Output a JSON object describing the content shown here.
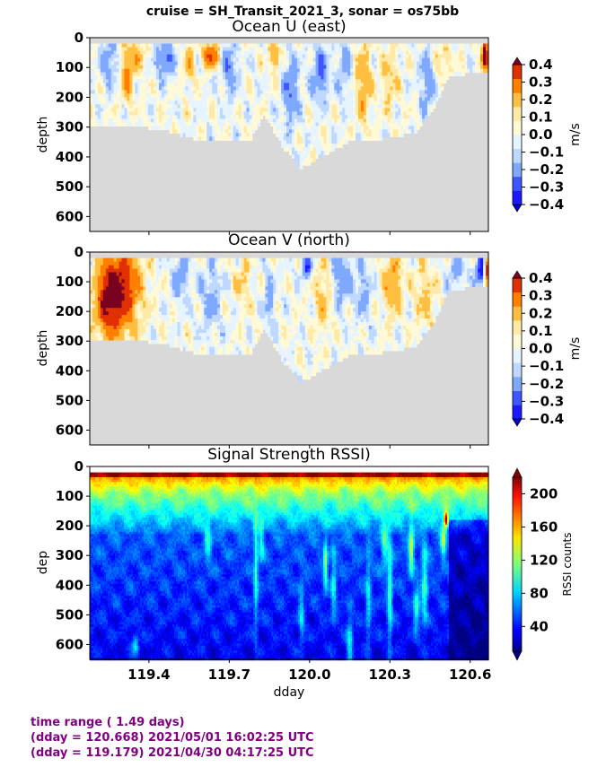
{
  "suptitle": "cruise = SH_Transit_2021_3,  sonar = os75bb",
  "footer": {
    "line1": "time range ( 1.49 days)",
    "line2": "(dday = 120.668) 2021/05/01 16:02:25 UTC",
    "line3": "(dday = 119.179) 2021/04/30 04:17:25 UTC"
  },
  "chart_data": [
    {
      "type": "heatmap",
      "title": "Ocean U (east)",
      "ylabel": "depth",
      "xlabel": "",
      "xlim": [
        119.179,
        120.668
      ],
      "ylim": [
        650,
        0
      ],
      "yticks": [
        0,
        100,
        200,
        300,
        400,
        500,
        600
      ],
      "xticks": [
        119.4,
        119.7,
        120.0,
        120.3,
        120.6
      ],
      "show_xticklabels": false,
      "colorbar": {
        "label": "m/s",
        "ticks": [
          "0.4",
          "0.3",
          "0.2",
          "0.1",
          "0.0",
          "−0.1",
          "−0.2",
          "−0.3",
          "−0.4"
        ],
        "levels": [
          -0.4,
          -0.3,
          -0.2,
          -0.1,
          -0.05,
          0.0,
          0.05,
          0.1,
          0.2,
          0.3,
          0.4
        ],
        "colors": [
          "#1a1aff",
          "#3f55ff",
          "#7fa8ff",
          "#bfd8ff",
          "#e6f4ff",
          "#fff9d6",
          "#ffe9a6",
          "#ffbf40",
          "#ff7f00",
          "#e03000"
        ],
        "under": "#0000d0",
        "over": "#7a0020"
      },
      "bottom_depth": [
        [
          119.179,
          290
        ],
        [
          119.33,
          290
        ],
        [
          119.45,
          300
        ],
        [
          119.55,
          330
        ],
        [
          119.65,
          340
        ],
        [
          119.78,
          335
        ],
        [
          119.83,
          250
        ],
        [
          119.9,
          360
        ],
        [
          119.97,
          430
        ],
        [
          120.05,
          390
        ],
        [
          120.15,
          340
        ],
        [
          120.3,
          330
        ],
        [
          120.4,
          310
        ],
        [
          120.47,
          220
        ],
        [
          120.52,
          120
        ],
        [
          120.668,
          110
        ]
      ],
      "features": [
        {
          "x": 119.32,
          "z": 120,
          "v": 0.24,
          "wx": 0.022,
          "wz": 90
        },
        {
          "x": 119.36,
          "z": 60,
          "v": 0.14,
          "wx": 0.03,
          "wz": 50
        },
        {
          "x": 119.25,
          "z": 80,
          "v": -0.16,
          "wx": 0.03,
          "wz": 80
        },
        {
          "x": 119.46,
          "z": 70,
          "v": -0.22,
          "wx": 0.035,
          "wz": 60
        },
        {
          "x": 119.55,
          "z": 90,
          "v": 0.18,
          "wx": 0.02,
          "wz": 60
        },
        {
          "x": 119.63,
          "z": 60,
          "v": 0.32,
          "wx": 0.03,
          "wz": 40
        },
        {
          "x": 119.7,
          "z": 100,
          "v": -0.18,
          "wx": 0.03,
          "wz": 90
        },
        {
          "x": 119.87,
          "z": 60,
          "v": 0.22,
          "wx": 0.02,
          "wz": 50
        },
        {
          "x": 119.93,
          "z": 180,
          "v": -0.2,
          "wx": 0.03,
          "wz": 120
        },
        {
          "x": 120.04,
          "z": 120,
          "v": -0.22,
          "wx": 0.03,
          "wz": 90
        },
        {
          "x": 120.13,
          "z": 100,
          "v": -0.12,
          "wx": 0.03,
          "wz": 110
        },
        {
          "x": 120.2,
          "z": 150,
          "v": 0.18,
          "wx": 0.03,
          "wz": 130
        },
        {
          "x": 120.3,
          "z": 130,
          "v": 0.12,
          "wx": 0.03,
          "wz": 110
        },
        {
          "x": 120.44,
          "z": 150,
          "v": -0.18,
          "wx": 0.025,
          "wz": 100
        },
        {
          "x": 120.5,
          "z": 70,
          "v": 0.1,
          "wx": 0.03,
          "wz": 60
        },
        {
          "x": 120.655,
          "z": 60,
          "v": 0.55,
          "wx": 0.012,
          "wz": 50
        }
      ]
    },
    {
      "type": "heatmap",
      "title": "Ocean V (north)",
      "ylabel": "depth",
      "xlabel": "",
      "xlim": [
        119.179,
        120.668
      ],
      "ylim": [
        650,
        0
      ],
      "yticks": [
        0,
        100,
        200,
        300,
        400,
        500,
        600
      ],
      "xticks": [
        119.4,
        119.7,
        120.0,
        120.3,
        120.6
      ],
      "show_xticklabels": false,
      "colorbar": {
        "label": "m/s",
        "ticks": [
          "0.4",
          "0.3",
          "0.2",
          "0.1",
          "0.0",
          "−0.1",
          "−0.2",
          "−0.3",
          "−0.4"
        ],
        "levels": [
          -0.4,
          -0.3,
          -0.2,
          -0.1,
          -0.05,
          0.0,
          0.05,
          0.1,
          0.2,
          0.3,
          0.4
        ],
        "colors": [
          "#1a1aff",
          "#3f55ff",
          "#7fa8ff",
          "#bfd8ff",
          "#e6f4ff",
          "#fff9d6",
          "#ffe9a6",
          "#ffbf40",
          "#ff7f00",
          "#e03000"
        ],
        "under": "#0000d0",
        "over": "#7a0020"
      },
      "bottom_depth": [
        [
          119.179,
          290
        ],
        [
          119.33,
          290
        ],
        [
          119.45,
          300
        ],
        [
          119.55,
          330
        ],
        [
          119.65,
          340
        ],
        [
          119.78,
          335
        ],
        [
          119.83,
          250
        ],
        [
          119.9,
          360
        ],
        [
          119.97,
          430
        ],
        [
          120.05,
          390
        ],
        [
          120.15,
          340
        ],
        [
          120.3,
          330
        ],
        [
          120.4,
          310
        ],
        [
          120.47,
          220
        ],
        [
          120.52,
          120
        ],
        [
          120.668,
          110
        ]
      ],
      "features": [
        {
          "x": 119.3,
          "z": 90,
          "v": 0.32,
          "wx": 0.07,
          "wz": 120
        },
        {
          "x": 119.28,
          "z": 200,
          "v": 0.2,
          "wx": 0.07,
          "wz": 120
        },
        {
          "x": 119.24,
          "z": 150,
          "v": 0.22,
          "wx": 0.04,
          "wz": 120
        },
        {
          "x": 119.52,
          "z": 80,
          "v": -0.16,
          "wx": 0.03,
          "wz": 80
        },
        {
          "x": 119.63,
          "z": 150,
          "v": -0.12,
          "wx": 0.04,
          "wz": 120
        },
        {
          "x": 119.75,
          "z": 100,
          "v": 0.12,
          "wx": 0.03,
          "wz": 80
        },
        {
          "x": 119.85,
          "z": 160,
          "v": -0.15,
          "wx": 0.02,
          "wz": 90
        },
        {
          "x": 119.99,
          "z": 50,
          "v": -0.28,
          "wx": 0.02,
          "wz": 40
        },
        {
          "x": 120.05,
          "z": 150,
          "v": 0.14,
          "wx": 0.03,
          "wz": 120
        },
        {
          "x": 120.12,
          "z": 90,
          "v": -0.16,
          "wx": 0.04,
          "wz": 90
        },
        {
          "x": 120.2,
          "z": 130,
          "v": -0.12,
          "wx": 0.03,
          "wz": 110
        },
        {
          "x": 120.31,
          "z": 100,
          "v": 0.2,
          "wx": 0.035,
          "wz": 110
        },
        {
          "x": 120.43,
          "z": 150,
          "v": 0.12,
          "wx": 0.04,
          "wz": 110
        },
        {
          "x": 120.55,
          "z": 60,
          "v": -0.14,
          "wx": 0.03,
          "wz": 60
        },
        {
          "x": 120.64,
          "z": 60,
          "v": -0.35,
          "wx": 0.02,
          "wz": 50
        },
        {
          "x": 120.66,
          "z": 60,
          "v": 0.5,
          "wx": 0.008,
          "wz": 45
        }
      ]
    },
    {
      "type": "heatmap",
      "title": "Signal Strength RSSI)",
      "ylabel": "dep",
      "xlabel": "dday",
      "xlim": [
        119.179,
        120.668
      ],
      "ylim": [
        650,
        0
      ],
      "yticks": [
        0,
        100,
        200,
        300,
        400,
        500,
        600
      ],
      "xticks": [
        119.4,
        119.7,
        120.0,
        120.3,
        120.6
      ],
      "xticklabels": [
        "119.4",
        "119.7",
        "120.0",
        "120.3",
        "120.6"
      ],
      "show_xticklabels": true,
      "colorbar": {
        "label": "RSSI counts",
        "ticks": [
          "200",
          "160",
          "120",
          "80",
          "40"
        ],
        "range": [
          10,
          220
        ],
        "tick_values": [
          200,
          160,
          120,
          80,
          40
        ]
      },
      "features": [
        {
          "x": 119.35,
          "z": 600,
          "v": 100,
          "wx": 0.012,
          "wz": 35
        },
        {
          "x": 119.62,
          "z": 250,
          "v": 95,
          "wx": 0.012,
          "wz": 70
        },
        {
          "x": 119.8,
          "z": 350,
          "v": 100,
          "wx": 0.008,
          "wz": 200
        },
        {
          "x": 119.82,
          "z": 250,
          "v": 90,
          "wx": 0.01,
          "wz": 80
        },
        {
          "x": 119.97,
          "z": 500,
          "v": 90,
          "wx": 0.01,
          "wz": 110
        },
        {
          "x": 120.06,
          "z": 330,
          "v": 120,
          "wx": 0.008,
          "wz": 80
        },
        {
          "x": 120.09,
          "z": 400,
          "v": 95,
          "wx": 0.01,
          "wz": 110
        },
        {
          "x": 120.15,
          "z": 600,
          "v": 100,
          "wx": 0.012,
          "wz": 100
        },
        {
          "x": 120.22,
          "z": 450,
          "v": 90,
          "wx": 0.01,
          "wz": 150
        },
        {
          "x": 120.28,
          "z": 260,
          "v": 100,
          "wx": 0.012,
          "wz": 80
        },
        {
          "x": 120.3,
          "z": 420,
          "v": 105,
          "wx": 0.01,
          "wz": 200
        },
        {
          "x": 120.38,
          "z": 280,
          "v": 130,
          "wx": 0.01,
          "wz": 80
        },
        {
          "x": 120.4,
          "z": 480,
          "v": 110,
          "wx": 0.012,
          "wz": 70
        },
        {
          "x": 120.43,
          "z": 400,
          "v": 105,
          "wx": 0.012,
          "wz": 140
        },
        {
          "x": 120.51,
          "z": 180,
          "v": 190,
          "wx": 0.008,
          "wz": 25
        },
        {
          "x": 120.5,
          "z": 250,
          "v": 120,
          "wx": 0.01,
          "wz": 60
        }
      ]
    }
  ]
}
